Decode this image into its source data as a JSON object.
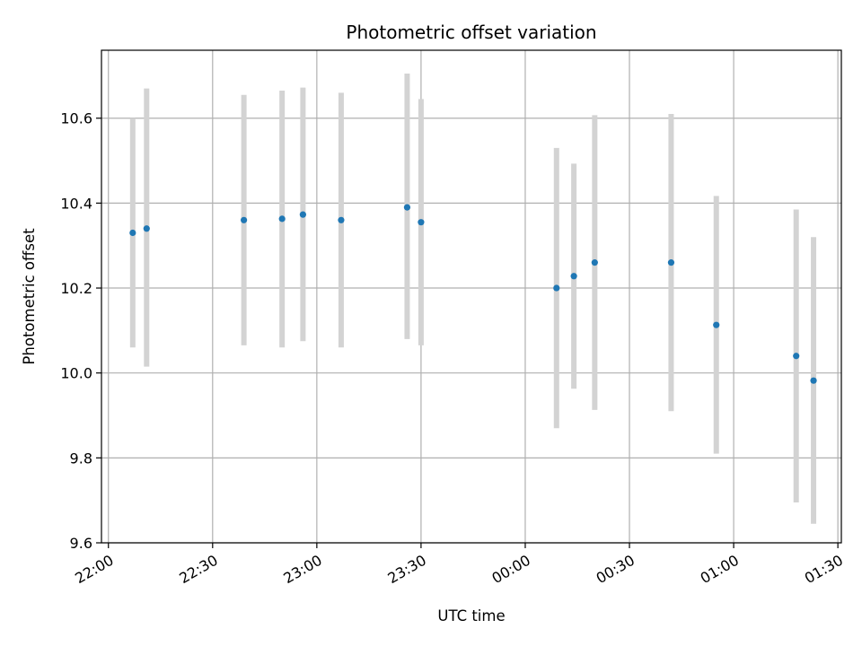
{
  "chart_data": {
    "type": "scatter",
    "title": "Photometric offset variation",
    "xlabel": "UTC time",
    "ylabel": "Photometric offset",
    "grid": true,
    "x_ticks": [
      "22:00",
      "22:30",
      "23:00",
      "23:30",
      "00:00",
      "00:30",
      "01:00",
      "01:30"
    ],
    "y_ticks": [
      "9.6",
      "9.8",
      "10.0",
      "10.2",
      "10.4",
      "10.6"
    ],
    "xlim": [
      "21:58",
      "01:31"
    ],
    "ylim": [
      9.6,
      10.76
    ],
    "colors": {
      "marker": "#1f77b4",
      "errorbar": "#d3d3d3",
      "grid": "#b0b0b0"
    },
    "points": [
      {
        "time": "22:07",
        "value": 10.33,
        "err_low": 10.06,
        "err_high": 10.6
      },
      {
        "time": "22:11",
        "value": 10.34,
        "err_low": 10.015,
        "err_high": 10.67
      },
      {
        "time": "22:39",
        "value": 10.36,
        "err_low": 10.065,
        "err_high": 10.655
      },
      {
        "time": "22:50",
        "value": 10.363,
        "err_low": 10.06,
        "err_high": 10.665
      },
      {
        "time": "22:56",
        "value": 10.373,
        "err_low": 10.075,
        "err_high": 10.672
      },
      {
        "time": "23:07",
        "value": 10.36,
        "err_low": 10.06,
        "err_high": 10.66
      },
      {
        "time": "23:26",
        "value": 10.39,
        "err_low": 10.08,
        "err_high": 10.705
      },
      {
        "time": "23:30",
        "value": 10.355,
        "err_low": 10.065,
        "err_high": 10.645
      },
      {
        "time": "00:09",
        "value": 10.2,
        "err_low": 9.87,
        "err_high": 10.53
      },
      {
        "time": "00:14",
        "value": 10.228,
        "err_low": 9.963,
        "err_high": 10.493
      },
      {
        "time": "00:20",
        "value": 10.26,
        "err_low": 9.913,
        "err_high": 10.607
      },
      {
        "time": "00:42",
        "value": 10.26,
        "err_low": 9.91,
        "err_high": 10.61
      },
      {
        "time": "00:55",
        "value": 10.113,
        "err_low": 9.81,
        "err_high": 10.417
      },
      {
        "time": "01:18",
        "value": 10.04,
        "err_low": 9.695,
        "err_high": 10.385
      },
      {
        "time": "01:23",
        "value": 9.982,
        "err_low": 9.645,
        "err_high": 10.32
      }
    ]
  }
}
